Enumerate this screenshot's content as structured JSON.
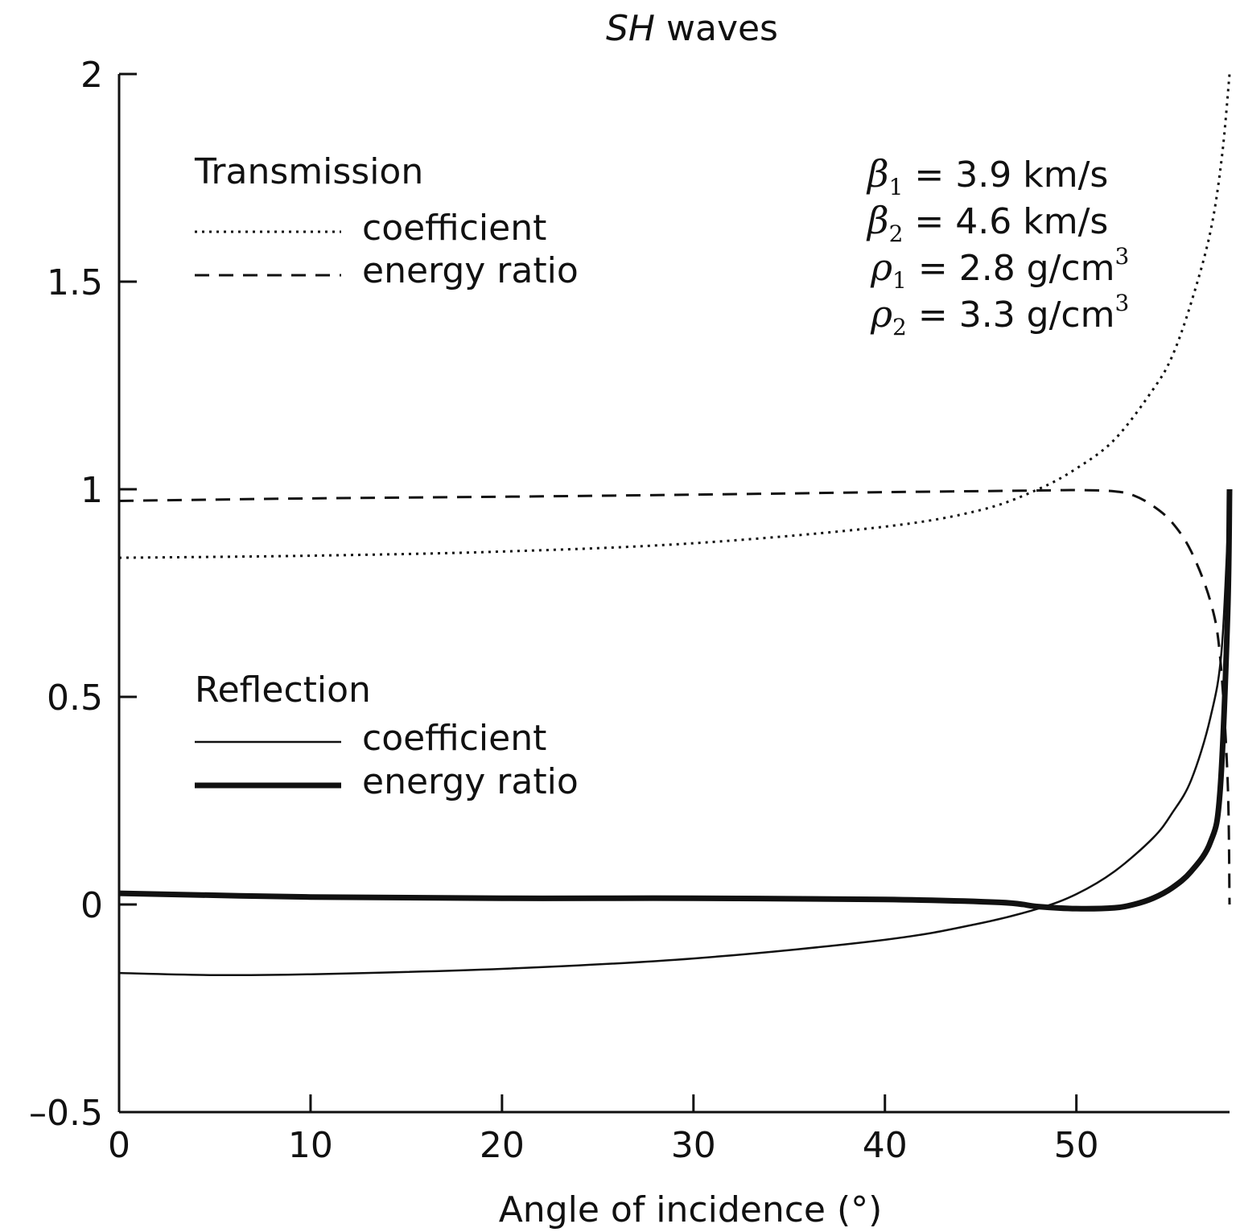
{
  "chart_data": {
    "type": "line",
    "title_italic": "SH",
    "title_rest": " waves",
    "xlabel": "Angle of incidence (°)",
    "ylabel": "",
    "xlim": [
      0,
      58
    ],
    "ylim": [
      -0.5,
      2
    ],
    "xticks": [
      0,
      10,
      20,
      30,
      40,
      50
    ],
    "xtick_labels": [
      "0",
      "10",
      "20",
      "30",
      "40",
      "50"
    ],
    "yticks": [
      -0.5,
      0,
      0.5,
      1,
      1.5,
      2
    ],
    "ytick_labels": [
      "–0.5",
      "0",
      "0.5",
      "1",
      "1.5",
      "2"
    ],
    "legend_transmission": {
      "heading": "Transmission",
      "coefficient": "coefficient",
      "energy_ratio": "energy ratio"
    },
    "legend_reflection": {
      "heading": "Reflection",
      "coefficient": "coefficient",
      "energy_ratio": "energy ratio"
    },
    "parameters": [
      {
        "symbol": "β",
        "sub": "1",
        "rest": " = 3.9 km/s",
        "sup": ""
      },
      {
        "symbol": "β",
        "sub": "2",
        "rest": " = 4.6 km/s",
        "sup": ""
      },
      {
        "symbol": "ρ",
        "sub": "1",
        "rest": " = 2.8 g/cm",
        "sup": "3"
      },
      {
        "symbol": "ρ",
        "sub": "2",
        "rest": " = 3.3 g/cm",
        "sup": "3"
      }
    ],
    "series": [
      {
        "id": "transmission-coefficient",
        "style": "dotted",
        "x": [
          0,
          10,
          20,
          30,
          40,
          45,
          48,
          50,
          52,
          54,
          55,
          56,
          57,
          57.6,
          58
        ],
        "y": [
          0.835,
          0.84,
          0.85,
          0.87,
          0.91,
          0.95,
          1.0,
          1.05,
          1.12,
          1.24,
          1.32,
          1.45,
          1.62,
          1.8,
          2.0
        ]
      },
      {
        "id": "transmission-energy-ratio",
        "style": "dashed",
        "x": [
          0,
          10,
          20,
          30,
          40,
          48,
          50,
          52,
          53,
          54,
          55,
          56,
          57,
          57.5,
          57.9,
          58
        ],
        "y": [
          0.972,
          0.978,
          0.982,
          0.987,
          0.993,
          0.997,
          0.998,
          0.995,
          0.985,
          0.96,
          0.92,
          0.85,
          0.73,
          0.6,
          0.3,
          0.0
        ]
      },
      {
        "id": "reflection-coefficient",
        "style": "thin",
        "x": [
          0,
          5,
          10,
          20,
          30,
          40,
          45,
          48,
          50,
          52,
          54,
          55,
          56,
          57,
          57.6,
          58
        ],
        "y": [
          -0.165,
          -0.17,
          -0.168,
          -0.155,
          -0.13,
          -0.085,
          -0.045,
          -0.01,
          0.025,
          0.08,
          0.16,
          0.22,
          0.3,
          0.45,
          0.62,
          1.0
        ]
      },
      {
        "id": "reflection-energy-ratio",
        "style": "thick",
        "x": [
          0,
          10,
          20,
          30,
          40,
          46,
          48,
          50,
          52,
          53,
          54,
          55,
          56,
          57,
          57.5,
          57.9,
          58
        ],
        "y": [
          0.027,
          0.018,
          0.015,
          0.015,
          0.012,
          0.005,
          -0.005,
          -0.01,
          -0.008,
          0.0,
          0.015,
          0.04,
          0.08,
          0.15,
          0.27,
          0.7,
          1.0
        ]
      }
    ]
  }
}
